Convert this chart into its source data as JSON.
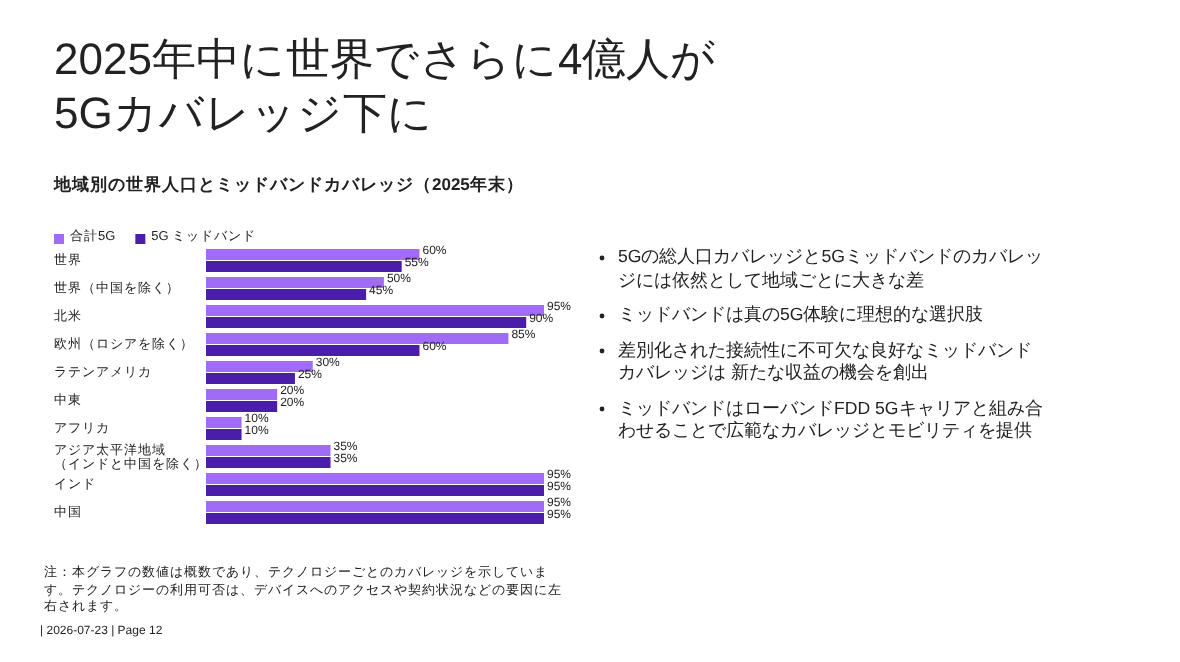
{
  "chart_data": {
    "type": "bar",
    "orientation": "horizontal",
    "title": "2025年中に世界でさらに4億人が5Gカバレッジ下に",
    "subtitle": "地域別の世界人口とミッドバンドカバレッジ（2025年末）",
    "categories": [
      "世界",
      "世界（中国を除く）",
      "北米",
      "欧州（ロシアを除く）",
      "ラテンアメリカ",
      "中東",
      "アフリカ",
      "アジア太平洋地域（インドと中国を除く）",
      "インド",
      "中国"
    ],
    "series": [
      {
        "name": "合計5G",
        "color": "#a06cf5",
        "values": [
          60,
          50,
          95,
          85,
          30,
          20,
          10,
          35,
          95,
          95
        ],
        "value_labels": [
          "60%",
          "50%",
          "95%",
          "85%",
          "30%",
          "20%",
          "10%",
          "35%",
          "95%",
          "95%"
        ]
      },
      {
        "name": "5G ミッドバンド",
        "color": "#4a1ea8",
        "values": [
          55,
          45,
          90,
          60,
          25,
          20,
          10,
          35,
          95,
          95
        ],
        "value_labels": [
          "55%",
          "45%",
          "90%",
          "60%",
          "25%",
          "20%",
          "10%",
          "35%",
          "95%",
          "95%"
        ]
      }
    ],
    "legend": "top left",
    "annotations": [
      "5Gの総人口カバレッジと5Gミッドバンドのカバレッジには依然として地域ごとに大きな差",
      "ミッドバンドは真の5G体験に理想的な選択肢",
      "差別化された接続性に不可欠な良好なミッドバンドカバレッジは 新たな収益の機会を創出",
      "ミッドバンドはローバンドFDD 5Gキャリアと組み合わせることで広範なカバレッジとモビリティを提供",
      "注：本グラフの数値は概数であり、テクノロジーごとのカバレッジを示しています。テクノロジーの利用可否は、デバイスへのアクセスや契約状況などの要因に左右されます。",
      "| 2026-07-23 | Page 12"
    ]
  }
}
